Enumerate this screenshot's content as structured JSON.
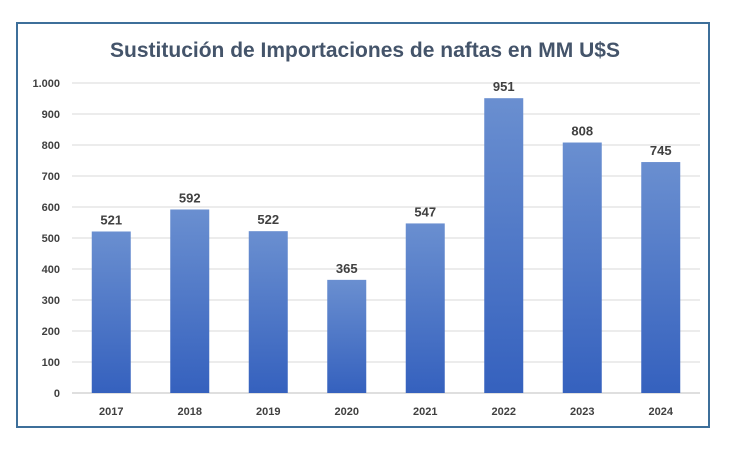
{
  "chart_data": {
    "type": "bar",
    "title": "Sustitución de Importaciones de naftas en MM U$S",
    "categories": [
      "2017",
      "2018",
      "2019",
      "2020",
      "2021",
      "2022",
      "2023",
      "2024"
    ],
    "values": [
      521,
      592,
      522,
      365,
      547,
      951,
      808,
      745
    ],
    "data_labels": [
      "521",
      "592",
      "522",
      "365",
      "547",
      "951",
      "808",
      "745"
    ],
    "y_ticks": [
      0,
      100,
      200,
      300,
      400,
      500,
      600,
      700,
      800,
      900,
      1000
    ],
    "y_tick_labels": [
      "0",
      "100",
      "200",
      "300",
      "400",
      "500",
      "600",
      "700",
      "800",
      "900",
      "1.000"
    ],
    "ylim": [
      0,
      1000
    ],
    "xlabel": "",
    "ylabel": "",
    "grid": true,
    "legend": "none",
    "colors": {
      "bar_top": "#6a8fd0",
      "bar_bottom": "#3561be",
      "gridline": "#d9d9d9",
      "frame_border": "#3d6f9a",
      "title": "#44546a",
      "label_text": "#404040",
      "highlight_label": "#000000"
    }
  }
}
